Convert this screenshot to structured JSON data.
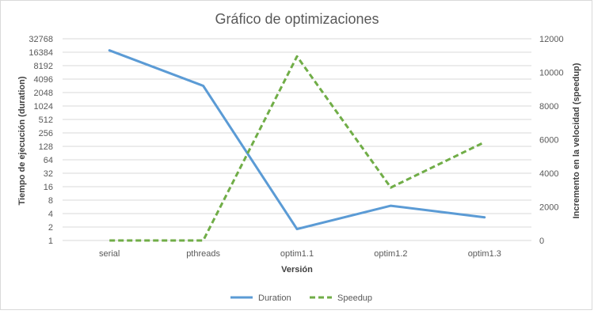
{
  "chart_data": {
    "type": "line",
    "title": "Gráfico de optimizaciones",
    "xlabel": "Versión",
    "ylabel_left": "Tiempo de ejecución (duration)",
    "ylabel_right": "Incremento en la velocidad (speedup)",
    "categories": [
      "serial",
      "pthreads",
      "optim1.1",
      "optim1.2",
      "optim1.3"
    ],
    "y_left_scale": "log2",
    "y_left_ticks": [
      "1",
      "2",
      "4",
      "8",
      "16",
      "32",
      "64",
      "128",
      "256",
      "512",
      "1024",
      "2048",
      "4096",
      "8192",
      "16384",
      "32768"
    ],
    "ylim_left": [
      1,
      32768
    ],
    "y_right_ticks": [
      "0",
      "2000",
      "4000",
      "6000",
      "8000",
      "10000",
      "12000"
    ],
    "ylim_right": [
      0,
      12000
    ],
    "grid": "horizontal",
    "legend_position": "bottom",
    "series": [
      {
        "name": "Duration",
        "axis": "left",
        "style": "solid",
        "color": "#5b9bd5",
        "values": [
          18000,
          2900,
          1.8,
          6,
          3.3
        ]
      },
      {
        "name": "Speedup",
        "axis": "right",
        "style": "dashed",
        "color": "#70ad47",
        "values": [
          0,
          0,
          10950,
          3150,
          5850
        ]
      }
    ]
  }
}
